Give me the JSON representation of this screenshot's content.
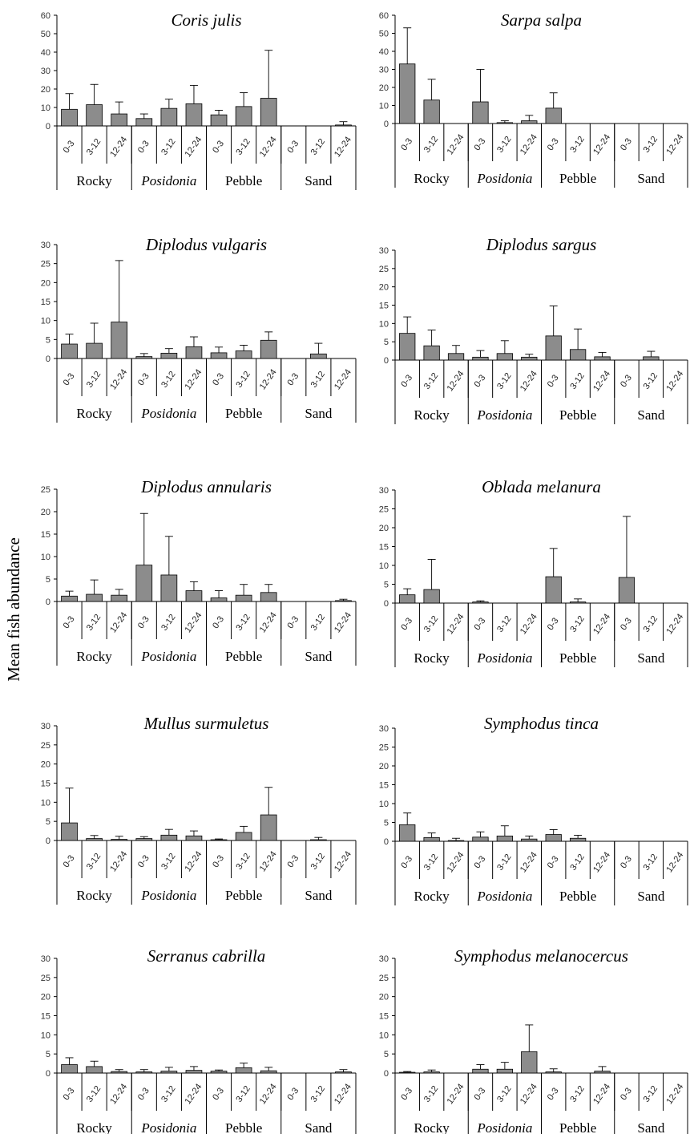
{
  "ylabel": "Mean fish abundance",
  "categories": [
    "0-3",
    "3-12",
    "12-24",
    "0-3",
    "3-12",
    "12-24",
    "0-3",
    "3-12",
    "12-24",
    "0-3",
    "3-12",
    "12-24"
  ],
  "habitats": [
    {
      "label": "Rocky",
      "italic": false
    },
    {
      "label": "Posidonia",
      "italic": true
    },
    {
      "label": "Pebble",
      "italic": false
    },
    {
      "label": "Sand",
      "italic": false
    }
  ],
  "colors": {
    "bar": "#8c8c8c",
    "axis": "#000000"
  },
  "chart_data": [
    {
      "type": "bar",
      "title": "Coris julis",
      "ylim": [
        0,
        60
      ],
      "ticks": [
        0,
        10,
        20,
        30,
        40,
        50,
        60
      ],
      "values": [
        9,
        11.5,
        6.5,
        4,
        9.5,
        12,
        6,
        10.5,
        15,
        0,
        0,
        0.5
      ],
      "errors": [
        8.5,
        11,
        6.5,
        2.5,
        5,
        10,
        2.5,
        7.5,
        26,
        0,
        0,
        1.8
      ]
    },
    {
      "type": "bar",
      "title": "Sarpa salpa",
      "ylim": [
        0,
        60
      ],
      "ticks": [
        0,
        10,
        20,
        30,
        40,
        50,
        60
      ],
      "values": [
        33,
        13,
        0,
        12,
        0.5,
        1.5,
        8.5,
        0,
        0,
        0,
        0,
        0
      ],
      "errors": [
        20,
        11.5,
        0,
        18,
        1,
        3,
        8.5,
        0,
        0,
        0,
        0,
        0
      ]
    },
    {
      "type": "bar",
      "title": "Diplodus vulgaris",
      "ylim": [
        0,
        30
      ],
      "ticks": [
        0,
        5,
        10,
        15,
        20,
        25,
        30
      ],
      "values": [
        3.8,
        4,
        9.6,
        0.5,
        1.4,
        3.1,
        1.5,
        2,
        4.8,
        0,
        1.2,
        0
      ],
      "errors": [
        2.6,
        5.3,
        16.2,
        0.8,
        1.2,
        2.6,
        1.5,
        1.5,
        2.2,
        0,
        2.8,
        0
      ]
    },
    {
      "type": "bar",
      "title": "Diplodus sargus",
      "ylim": [
        0,
        30
      ],
      "ticks": [
        0,
        5,
        10,
        15,
        20,
        25,
        30
      ],
      "values": [
        7.3,
        3.9,
        1.8,
        0.8,
        1.8,
        0.8,
        6.6,
        2.9,
        0.9,
        0,
        0.9,
        0
      ],
      "errors": [
        4.5,
        4.3,
        2.2,
        1.8,
        3.5,
        0.8,
        8.2,
        5.6,
        1.2,
        0,
        1.5,
        0
      ]
    },
    {
      "type": "bar",
      "title": "Diplodus annularis",
      "ylim": [
        0,
        25
      ],
      "ticks": [
        0,
        5,
        10,
        15,
        20,
        25
      ],
      "values": [
        1.2,
        1.6,
        1.4,
        8.1,
        5.9,
        2.4,
        0.8,
        1.4,
        2,
        0,
        0,
        0.2
      ],
      "errors": [
        1.1,
        3.2,
        1.3,
        11.5,
        8.6,
        2,
        1.6,
        2.4,
        1.8,
        0,
        0,
        0.3
      ]
    },
    {
      "type": "bar",
      "title": "Oblada melanura",
      "ylim": [
        0,
        30
      ],
      "ticks": [
        0,
        5,
        10,
        15,
        20,
        25,
        30
      ],
      "values": [
        2.2,
        3.6,
        0,
        0.3,
        0,
        0,
        7,
        0.3,
        0,
        6.8,
        0,
        0
      ],
      "errors": [
        1.6,
        8,
        0,
        0.3,
        0,
        0,
        7.5,
        0.8,
        0,
        16.2,
        0,
        0
      ]
    },
    {
      "type": "bar",
      "title": "Mullus surmuletus",
      "ylim": [
        0,
        30
      ],
      "ticks": [
        0,
        5,
        10,
        15,
        20,
        25,
        30
      ],
      "values": [
        4.6,
        0.5,
        0.3,
        0.5,
        1.4,
        1.2,
        0.2,
        2.1,
        6.7,
        0,
        0.2,
        0
      ],
      "errors": [
        9.1,
        0.8,
        0.8,
        0.5,
        1.5,
        1.3,
        0.2,
        1.6,
        7.2,
        0,
        0.6,
        0
      ]
    },
    {
      "type": "bar",
      "title": "Symphodus tinca",
      "ylim": [
        0,
        30
      ],
      "ticks": [
        0,
        5,
        10,
        15,
        20,
        25,
        30
      ],
      "values": [
        4.4,
        1,
        0.2,
        1.1,
        1.4,
        0.6,
        1.8,
        0.8,
        0,
        0,
        0,
        0
      ],
      "errors": [
        3.1,
        1.2,
        0.6,
        1.4,
        2.7,
        0.8,
        1.3,
        0.8,
        0,
        0,
        0,
        0
      ]
    },
    {
      "type": "bar",
      "title": "Serranus cabrilla",
      "ylim": [
        0,
        30
      ],
      "ticks": [
        0,
        5,
        10,
        15,
        20,
        25,
        30
      ],
      "values": [
        2.2,
        1.7,
        0.4,
        0.3,
        0.5,
        0.7,
        0.5,
        1.4,
        0.6,
        0,
        0,
        0.3
      ],
      "errors": [
        1.8,
        1.4,
        0.5,
        0.6,
        1,
        1,
        0.3,
        1.2,
        0.9,
        0,
        0,
        0.6
      ]
    },
    {
      "type": "bar",
      "title": "Symphodus melanocercus",
      "ylim": [
        0,
        30
      ],
      "ticks": [
        0,
        5,
        10,
        15,
        20,
        25,
        30
      ],
      "values": [
        0.2,
        0.3,
        0,
        1,
        1,
        5.6,
        0.3,
        0,
        0.5,
        0,
        0,
        0
      ],
      "errors": [
        0.2,
        0.5,
        0,
        1.2,
        1.8,
        7,
        0.8,
        0,
        1.2,
        0,
        0,
        0
      ]
    }
  ]
}
